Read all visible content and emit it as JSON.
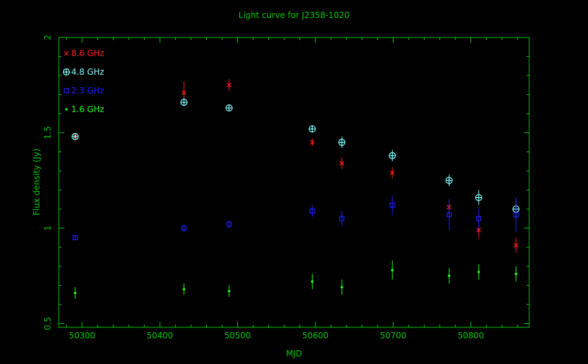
{
  "chart_data": {
    "type": "scatter",
    "title": "Light curve for J2358-1020",
    "xlabel": "MJD",
    "ylabel": "Flux density (Jy)",
    "xlim": [
      50270,
      50875
    ],
    "ylim": [
      0.48,
      2.0
    ],
    "xticks": [
      50300,
      50400,
      50500,
      50600,
      50700,
      50800
    ],
    "xtick_labels": [
      "50300",
      "50400",
      "50500",
      "50600",
      "50700",
      "50800"
    ],
    "yticks": [
      0.5,
      1,
      1.5,
      2
    ],
    "ytick_labels": [
      "0.5",
      "1",
      "1.5",
      "2"
    ],
    "legend_position": "top-left",
    "grid": false,
    "colors": {
      "axes": "#00cc00",
      "title": "#00cc00",
      "8.6 GHz": "#ff2020",
      "4.8 GHz": "#80ffff",
      "2.3 GHz": "#2020ff",
      "1.6 GHz": "#20ff20"
    },
    "series": [
      {
        "name": "8.6 GHz",
        "marker": "x",
        "x": [
          50291,
          50431,
          50489,
          50596,
          50634,
          50699,
          50772,
          50810,
          50858
        ],
        "y": [
          1.48,
          1.71,
          1.75,
          1.45,
          1.34,
          1.29,
          1.11,
          0.99,
          0.91
        ],
        "err": [
          0.02,
          0.06,
          0.03,
          0.02,
          0.03,
          0.03,
          0.04,
          0.04,
          0.04
        ]
      },
      {
        "name": "4.8 GHz",
        "marker": "circle-plus",
        "x": [
          50291,
          50431,
          50489,
          50596,
          50634,
          50699,
          50772,
          50810,
          50858
        ],
        "y": [
          1.48,
          1.66,
          1.63,
          1.52,
          1.45,
          1.38,
          1.25,
          1.16,
          1.1
        ],
        "err": [
          0.01,
          0.02,
          0.01,
          0.02,
          0.03,
          0.03,
          0.03,
          0.04,
          0.05
        ]
      },
      {
        "name": "2.3 GHz",
        "marker": "square",
        "x": [
          50291,
          50431,
          50489,
          50596,
          50634,
          50699,
          50772,
          50810,
          50858
        ],
        "y": [
          0.95,
          1.0,
          1.02,
          1.09,
          1.05,
          1.12,
          1.07,
          1.05,
          1.07
        ],
        "err": [
          0.01,
          0.02,
          0.02,
          0.03,
          0.04,
          0.05,
          0.08,
          0.05,
          0.09
        ]
      },
      {
        "name": "1.6 GHz",
        "marker": "dot",
        "x": [
          50291,
          50431,
          50489,
          50596,
          50634,
          50699,
          50772,
          50810,
          50858
        ],
        "y": [
          0.66,
          0.68,
          0.67,
          0.72,
          0.69,
          0.78,
          0.75,
          0.77,
          0.76
        ],
        "err": [
          0.03,
          0.03,
          0.03,
          0.04,
          0.04,
          0.05,
          0.04,
          0.04,
          0.04
        ]
      }
    ]
  }
}
